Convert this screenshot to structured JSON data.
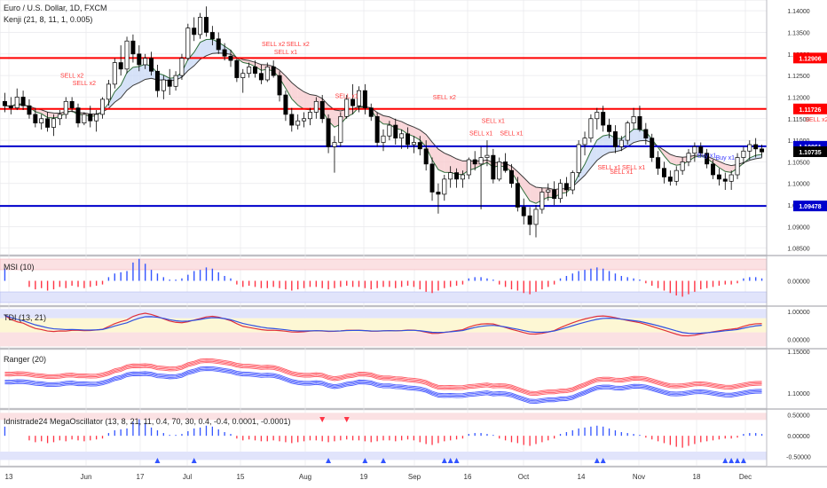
{
  "header": {
    "symbol_line": "Euro / U.S. Dollar, 1D, FXCM",
    "indicator_line": "Kenji (21, 8, 11, 1, 0.005)"
  },
  "panes": {
    "msi_title": "MSI (10)",
    "tdi_title": "TDI (13, 21)",
    "ranger_title": "Ranger (20)",
    "mega_title": "Idnistrade24 MegaOscillator (13, 8, 21, 11, 0.4, 70, 30, 0.4, -0.4, 0.0001, -0.0001)"
  },
  "colors": {
    "up_candle": "#ffffff",
    "down_candle": "#000000",
    "red_line": "#ff0000",
    "blue_line": "#0000cc",
    "sell_label": "#ff3b3b",
    "buy_label": "#3b3bff",
    "grid": "#e8e8ec",
    "price_tag_red": "#ff0000",
    "price_tag_blue": "#0000cc",
    "price_tag_black": "#000000"
  },
  "chart_data": {
    "type": "candlestick",
    "title": "Euro / U.S. Dollar, 1D, FXCM",
    "x_tick_labels": [
      "13",
      "Jun",
      "17",
      "Jul",
      "15",
      "Aug",
      "19",
      "Sep",
      "16",
      "Oct",
      "14",
      "Nov",
      "18",
      "Dec"
    ],
    "y_tick_labels": [
      "1.14000",
      "1.13500",
      "1.13000",
      "1.12500",
      "1.12000",
      "1.11500",
      "1.11000",
      "1.10500",
      "1.10000",
      "1.09500",
      "1.09000",
      "1.08500"
    ],
    "ylim": [
      1.0835,
      1.1425
    ],
    "ohlc": [
      [
        1.119,
        1.121,
        1.1165,
        1.118
      ],
      [
        1.118,
        1.12,
        1.116,
        1.1175
      ],
      [
        1.1175,
        1.122,
        1.117,
        1.12
      ],
      [
        1.12,
        1.1215,
        1.117,
        1.118
      ],
      [
        1.118,
        1.1195,
        1.115,
        1.116
      ],
      [
        1.116,
        1.1175,
        1.113,
        1.114
      ],
      [
        1.114,
        1.116,
        1.1125,
        1.115
      ],
      [
        1.115,
        1.1165,
        1.112,
        1.113
      ],
      [
        1.113,
        1.116,
        1.111,
        1.115
      ],
      [
        1.115,
        1.117,
        1.1135,
        1.116
      ],
      [
        1.116,
        1.12,
        1.115,
        1.119
      ],
      [
        1.119,
        1.12,
        1.1165,
        1.1175
      ],
      [
        1.1175,
        1.1185,
        1.113,
        1.114
      ],
      [
        1.114,
        1.1165,
        1.1135,
        1.116
      ],
      [
        1.116,
        1.118,
        1.113,
        1.1145
      ],
      [
        1.1145,
        1.117,
        1.112,
        1.116
      ],
      [
        1.116,
        1.12,
        1.115,
        1.1195
      ],
      [
        1.1195,
        1.124,
        1.118,
        1.123
      ],
      [
        1.123,
        1.129,
        1.122,
        1.128
      ],
      [
        1.128,
        1.132,
        1.125,
        1.1265
      ],
      [
        1.1265,
        1.134,
        1.1255,
        1.133
      ],
      [
        1.133,
        1.1345,
        1.128,
        1.13
      ],
      [
        1.13,
        1.132,
        1.126,
        1.1275
      ],
      [
        1.1275,
        1.13,
        1.1265,
        1.129
      ],
      [
        1.129,
        1.1305,
        1.125,
        1.126
      ],
      [
        1.126,
        1.1275,
        1.12,
        1.1215
      ],
      [
        1.1215,
        1.125,
        1.1195,
        1.124
      ],
      [
        1.124,
        1.1265,
        1.1205,
        1.1225
      ],
      [
        1.1225,
        1.126,
        1.1215,
        1.125
      ],
      [
        1.125,
        1.13,
        1.124,
        1.129
      ],
      [
        1.129,
        1.137,
        1.1285,
        1.136
      ],
      [
        1.136,
        1.1385,
        1.133,
        1.1345
      ],
      [
        1.1345,
        1.1395,
        1.1335,
        1.1385
      ],
      [
        1.1385,
        1.141,
        1.134,
        1.135
      ],
      [
        1.135,
        1.1365,
        1.132,
        1.1335
      ],
      [
        1.1335,
        1.135,
        1.13,
        1.131
      ],
      [
        1.131,
        1.1325,
        1.1285,
        1.1295
      ],
      [
        1.1295,
        1.131,
        1.127,
        1.1285
      ],
      [
        1.1285,
        1.129,
        1.1235,
        1.1245
      ],
      [
        1.1245,
        1.1265,
        1.121,
        1.1255
      ],
      [
        1.1255,
        1.128,
        1.1245,
        1.127
      ],
      [
        1.127,
        1.1285,
        1.1245,
        1.1255
      ],
      [
        1.1255,
        1.1275,
        1.123,
        1.124
      ],
      [
        1.124,
        1.128,
        1.1235,
        1.127
      ],
      [
        1.127,
        1.1285,
        1.1245,
        1.125
      ],
      [
        1.125,
        1.126,
        1.119,
        1.1205
      ],
      [
        1.1205,
        1.1215,
        1.1145,
        1.116
      ],
      [
        1.116,
        1.1175,
        1.112,
        1.1135
      ],
      [
        1.1135,
        1.116,
        1.1125,
        1.1145
      ],
      [
        1.1145,
        1.1165,
        1.113,
        1.115
      ],
      [
        1.115,
        1.1175,
        1.1135,
        1.1165
      ],
      [
        1.1165,
        1.12,
        1.115,
        1.119
      ],
      [
        1.119,
        1.1205,
        1.114,
        1.115
      ],
      [
        1.115,
        1.116,
        1.107,
        1.1085
      ],
      [
        1.1085,
        1.111,
        1.1025,
        1.1095
      ],
      [
        1.1095,
        1.1165,
        1.1085,
        1.1155
      ],
      [
        1.1155,
        1.1205,
        1.115,
        1.1195
      ],
      [
        1.1195,
        1.123,
        1.116,
        1.118
      ],
      [
        1.118,
        1.1225,
        1.1165,
        1.1215
      ],
      [
        1.1215,
        1.123,
        1.116,
        1.1175
      ],
      [
        1.1175,
        1.1185,
        1.1145,
        1.1155
      ],
      [
        1.1155,
        1.1165,
        1.1085,
        1.1095
      ],
      [
        1.1095,
        1.1125,
        1.1075,
        1.111
      ],
      [
        1.111,
        1.1145,
        1.11,
        1.1135
      ],
      [
        1.1135,
        1.115,
        1.109,
        1.1105
      ],
      [
        1.1105,
        1.1125,
        1.108,
        1.1115
      ],
      [
        1.1115,
        1.113,
        1.108,
        1.109
      ],
      [
        1.109,
        1.111,
        1.107,
        1.1095
      ],
      [
        1.1095,
        1.111,
        1.1065,
        1.108
      ],
      [
        1.108,
        1.11,
        1.103,
        1.1045
      ],
      [
        1.1045,
        1.106,
        1.096,
        1.098
      ],
      [
        1.098,
        1.1,
        1.093,
        1.0975
      ],
      [
        1.0975,
        1.102,
        1.096,
        1.101
      ],
      [
        1.101,
        1.104,
        1.099,
        1.1025
      ],
      [
        1.1025,
        1.1035,
        1.099,
        1.101
      ],
      [
        1.101,
        1.103,
        1.099,
        1.102
      ],
      [
        1.102,
        1.106,
        1.101,
        1.1055
      ],
      [
        1.1055,
        1.1075,
        1.103,
        1.1045
      ],
      [
        1.1045,
        1.1085,
        1.094,
        1.106
      ],
      [
        1.106,
        1.11,
        1.104,
        1.1065
      ],
      [
        1.1065,
        1.108,
        1.1,
        1.101
      ],
      [
        1.101,
        1.106,
        1.1005,
        1.105
      ],
      [
        1.105,
        1.107,
        1.1025,
        1.103
      ],
      [
        1.103,
        1.1045,
        1.099,
        1.1
      ],
      [
        1.1,
        1.1015,
        1.0935,
        1.0945
      ],
      [
        1.0945,
        1.0965,
        1.0905,
        1.0925
      ],
      [
        1.0925,
        1.0945,
        1.088,
        1.0905
      ],
      [
        1.0905,
        1.095,
        1.0875,
        1.094
      ],
      [
        1.094,
        1.099,
        1.093,
        1.098
      ],
      [
        1.098,
        1.1,
        1.096,
        1.0985
      ],
      [
        1.0985,
        1.1005,
        1.095,
        1.0965
      ],
      [
        1.0965,
        1.101,
        1.0955,
        1.1
      ],
      [
        1.1,
        1.1015,
        1.097,
        1.0985
      ],
      [
        1.0985,
        1.103,
        1.0975,
        1.1025
      ],
      [
        1.1025,
        1.11,
        1.1015,
        1.109
      ],
      [
        1.109,
        1.112,
        1.1065,
        1.1105
      ],
      [
        1.1105,
        1.116,
        1.1095,
        1.115
      ],
      [
        1.115,
        1.1175,
        1.1125,
        1.1165
      ],
      [
        1.1165,
        1.118,
        1.112,
        1.1135
      ],
      [
        1.1135,
        1.115,
        1.1105,
        1.112
      ],
      [
        1.112,
        1.1135,
        1.107,
        1.1085
      ],
      [
        1.1085,
        1.111,
        1.1075,
        1.11
      ],
      [
        1.11,
        1.1145,
        1.109,
        1.114
      ],
      [
        1.114,
        1.1175,
        1.1125,
        1.1155
      ],
      [
        1.1155,
        1.118,
        1.112,
        1.1125
      ],
      [
        1.1125,
        1.114,
        1.109,
        1.1105
      ],
      [
        1.1105,
        1.1115,
        1.105,
        1.106
      ],
      [
        1.106,
        1.1075,
        1.102,
        1.1035
      ],
      [
        1.1035,
        1.105,
        1.1,
        1.1015
      ],
      [
        1.1015,
        1.103,
        1.0995,
        1.1005
      ],
      [
        1.1005,
        1.104,
        1.0995,
        1.103
      ],
      [
        1.103,
        1.106,
        1.102,
        1.105
      ],
      [
        1.105,
        1.108,
        1.104,
        1.107
      ],
      [
        1.107,
        1.1095,
        1.105,
        1.1085
      ],
      [
        1.1085,
        1.1095,
        1.106,
        1.107
      ],
      [
        1.107,
        1.108,
        1.1035,
        1.1045
      ],
      [
        1.1045,
        1.1055,
        1.101,
        1.102
      ],
      [
        1.102,
        1.1035,
        1.0995,
        1.101
      ],
      [
        1.101,
        1.1025,
        1.0985,
        1.1005
      ],
      [
        1.1005,
        1.103,
        1.0985,
        1.102
      ],
      [
        1.102,
        1.107,
        1.101,
        1.106
      ],
      [
        1.106,
        1.1085,
        1.1045,
        1.1075
      ],
      [
        1.1075,
        1.11,
        1.1055,
        1.109
      ],
      [
        1.109,
        1.1105,
        1.106,
        1.108
      ],
      [
        1.108,
        1.109,
        1.106,
        1.1073
      ]
    ],
    "horizontal_levels": [
      {
        "value": 1.12906,
        "color": "red",
        "label": "1.12906"
      },
      {
        "value": 1.11726,
        "color": "red",
        "label": "1.11726"
      },
      {
        "value": 1.10861,
        "color": "blue",
        "label": "1.10861"
      },
      {
        "value": 1.09478,
        "color": "blue",
        "label": "1.09478"
      }
    ],
    "current_price_label": "1.10735",
    "signal_annotations": [
      {
        "text": "SELL x2",
        "bar": 11,
        "price": 1.1245
      },
      {
        "text": "SELL x2",
        "bar": 13,
        "price": 1.1228
      },
      {
        "text": "SELL x2",
        "bar": 44,
        "price": 1.1318
      },
      {
        "text": "SELL x2",
        "bar": 48,
        "price": 1.1318
      },
      {
        "text": "SELL x1",
        "bar": 46,
        "price": 1.13
      },
      {
        "text": "SELL x1",
        "bar": 56,
        "price": 1.1198
      },
      {
        "text": "SELL x2",
        "bar": 72,
        "price": 1.1195
      },
      {
        "text": "SELL x1",
        "bar": 80,
        "price": 1.114
      },
      {
        "text": "SELL x1",
        "bar": 78,
        "price": 1.1112
      },
      {
        "text": "SELL x1",
        "bar": 83,
        "price": 1.1112
      },
      {
        "text": "SELL x1",
        "bar": 99,
        "price": 1.1032
      },
      {
        "text": "SELL x1",
        "bar": 101,
        "price": 1.1022
      },
      {
        "text": "SELL x1",
        "bar": 103,
        "price": 1.1032
      },
      {
        "text": "Buy x1",
        "bar": 115,
        "price": 1.106
      },
      {
        "text": "Buy x1",
        "bar": 118,
        "price": 1.1055
      },
      {
        "text": "SELL x2",
        "bar": 133,
        "price": 1.1143
      }
    ],
    "msi": {
      "title": "MSI (10)",
      "y_tick_labels": [
        "0.00000"
      ],
      "values": [
        1,
        0,
        0,
        0,
        -0.5,
        -0.7,
        -0.6,
        -0.8,
        -0.7,
        -0.5,
        -0.6,
        -0.4,
        -0.5,
        -0.6,
        -0.5,
        -0.4,
        -0.3,
        0.3,
        0.6,
        0.7,
        0.8,
        1.5,
        1.8,
        1.4,
        0.9,
        0.6,
        0.3,
        0.1,
        0.1,
        0.2,
        0.5,
        0.8,
        0.9,
        1.1,
        1.0,
        0.7,
        0.4,
        0.2,
        -0.3,
        -0.5,
        -0.4,
        -0.5,
        -0.6,
        -0.6,
        -0.5,
        -0.6,
        -0.7,
        -0.8,
        -0.7,
        -0.6,
        -0.5,
        -0.5,
        -0.6,
        -0.7,
        -0.6,
        -0.5,
        -0.4,
        -0.5,
        -0.5,
        -0.6,
        -0.7,
        -0.6,
        -0.5,
        -0.5,
        -0.6,
        -0.5,
        -0.4,
        -0.5,
        -0.7,
        -0.9,
        -1.0,
        -0.8,
        -0.6,
        -0.5,
        -0.4,
        -0.3,
        0.2,
        0.3,
        0.3,
        0.2,
        0.1,
        -0.3,
        -0.5,
        -0.7,
        -0.8,
        -1.0,
        -1.1,
        -0.9,
        -0.7,
        -0.5,
        -0.3,
        0.2,
        0.4,
        0.6,
        0.8,
        0.9,
        1.0,
        1.1,
        1.0,
        0.8,
        0.6,
        0.4,
        0.3,
        0.2,
        0.1,
        -0.2,
        -0.4,
        -0.6,
        -0.8,
        -1.0,
        -1.2,
        -1.3,
        -1.1,
        -0.9,
        -0.7,
        -0.6,
        -0.5,
        -0.4,
        -0.3,
        -0.3,
        -0.2,
        0.2,
        0.3,
        0.3,
        0.2
      ],
      "ylim": [
        -2,
        2
      ]
    },
    "tdi": {
      "title": "TDI (13, 21)",
      "y_tick_labels": [
        "1.00000",
        "0.00000"
      ],
      "ylim": [
        -0.3,
        1.15
      ]
    },
    "ranger": {
      "title": "Ranger (20)",
      "y_tick_labels": [
        "1.15000",
        "1.10000"
      ],
      "ylim": [
        1.082,
        1.152
      ]
    },
    "mega_oscillator": {
      "title": "Idnistrade24 MegaOscillator (13, 8, 21, 11, 0.4, 70, 30, 0.4, -0.4, 0.0001, -0.0001)",
      "y_tick_labels": [
        "0.50000",
        "0.00000",
        "-0.50000"
      ],
      "ylim": [
        -0.72,
        0.62
      ]
    }
  }
}
